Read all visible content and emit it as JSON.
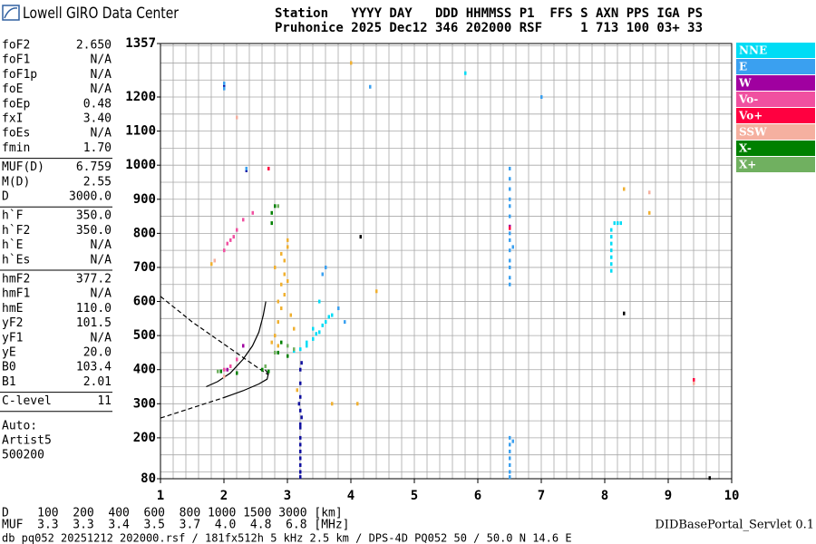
{
  "header": {
    "title": "Lowell GIRO Data Center",
    "line1": "Station   YYYY DAY   DDD HHMMSS P1  FFS S AXN PPS IGA PS",
    "line2": "Pruhonice 2025 Dec12 346 202000 RSF     1 713 100 03+ 33"
  },
  "parameters": [
    [
      {
        "name": "foF2",
        "value": "2.650"
      },
      {
        "name": "foF1",
        "value": "N/A"
      },
      {
        "name": "foF1p",
        "value": "N/A"
      },
      {
        "name": "foE",
        "value": "N/A"
      },
      {
        "name": "foEp",
        "value": "0.48"
      },
      {
        "name": "fxI",
        "value": "3.40"
      },
      {
        "name": "foEs",
        "value": "N/A"
      },
      {
        "name": "fmin",
        "value": "1.70"
      }
    ],
    [
      {
        "name": "MUF(D)",
        "value": "6.759"
      },
      {
        "name": "M(D)",
        "value": "2.55"
      },
      {
        "name": "D",
        "value": "3000.0"
      }
    ],
    [
      {
        "name": "h`F",
        "value": "350.0"
      },
      {
        "name": "h`F2",
        "value": "350.0"
      },
      {
        "name": "h`E",
        "value": "N/A"
      },
      {
        "name": "h`Es",
        "value": "N/A"
      }
    ],
    [
      {
        "name": "hmF2",
        "value": "377.2"
      },
      {
        "name": "hmF1",
        "value": "N/A"
      },
      {
        "name": "hmE",
        "value": "110.0"
      },
      {
        "name": "yF2",
        "value": "101.5"
      },
      {
        "name": "yF1",
        "value": "N/A"
      },
      {
        "name": "yE",
        "value": "20.0"
      },
      {
        "name": "B0",
        "value": "103.4"
      },
      {
        "name": "B1",
        "value": "2.01"
      }
    ],
    [
      {
        "name": "C-level",
        "value": "11"
      }
    ]
  ],
  "auto": [
    "Auto:",
    "Artist5",
    "500200"
  ],
  "footer": {
    "d_row": "D    100  200  400  600  800 1000 1500 3000 [km]",
    "muf_row": "MUF  3.3  3.3  3.4  3.5  3.7  4.0  4.8  6.8 [MHz]",
    "source": "db pq052 20251212 202000.rsf / 181fx512h 5 kHz 2.5 km / DPS-4D PQ052 50 / 50.0 N 14.6 E",
    "servlet": "DIDBasePortal_Servlet 0.1"
  },
  "chart_data": {
    "type": "scatter",
    "xlim": [
      1,
      10
    ],
    "xticks": [
      1,
      2,
      3,
      4,
      5,
      6,
      7,
      8,
      9,
      10
    ],
    "ylim": [
      80,
      1357
    ],
    "yticks": [
      80,
      200,
      300,
      400,
      500,
      600,
      700,
      800,
      900,
      1000,
      1100,
      1200,
      1357
    ],
    "grid": true,
    "x_grid_step": 0.2,
    "y_grid_step": 50,
    "legend": "right",
    "series": [
      {
        "name": "NNE",
        "color": "#00dcf5",
        "x": [
          8.1,
          8.1,
          8.1,
          8.1,
          8.1,
          8.1,
          8.1,
          8.15,
          8.2,
          8.25,
          3.3,
          3.4,
          3.5,
          3.6,
          3.7,
          3.2,
          3.1,
          3.4,
          3.5,
          3.3,
          5.8,
          3.45,
          3.55,
          3.65
        ],
        "y": [
          690,
          710,
          730,
          750,
          770,
          790,
          810,
          830,
          830,
          830,
          470,
          490,
          510,
          540,
          560,
          460,
          455,
          520,
          600,
          480,
          1270,
          505,
          530,
          555
        ]
      },
      {
        "name": "E",
        "color": "#3aa0f0",
        "x": [
          6.5,
          6.5,
          6.5,
          6.5,
          6.5,
          6.5,
          6.5,
          6.5,
          6.5,
          6.5,
          6.5,
          6.5,
          6.5,
          6.5,
          6.5,
          6.5,
          6.5,
          6.5,
          6.5,
          6.5,
          2.0,
          2.0,
          3.6,
          3.55,
          3.8,
          3.9,
          4.3,
          2.35,
          7.0,
          6.55,
          6.55
        ],
        "y": [
          650,
          670,
          700,
          720,
          750,
          780,
          800,
          850,
          880,
          900,
          930,
          960,
          990,
          200,
          180,
          160,
          140,
          120,
          100,
          85,
          1240,
          1225,
          700,
          680,
          580,
          540,
          1230,
          990,
          1200,
          760,
          190
        ]
      },
      {
        "name": "W",
        "color": "#a000a0",
        "x": [
          6.5,
          2.3,
          2.05
        ],
        "y": [
          820,
          470,
          400
        ]
      },
      {
        "name": "Vo-",
        "color": "#f050a0",
        "x": [
          2.0,
          2.05,
          2.1,
          2.15,
          2.2,
          2.3,
          2.45,
          2.0,
          2.1,
          2.2
        ],
        "y": [
          750,
          770,
          780,
          790,
          810,
          840,
          860,
          400,
          410,
          430
        ]
      },
      {
        "name": "Vo+",
        "color": "#ff0040",
        "x": [
          9.4,
          2.7,
          6.5
        ],
        "y": [
          370,
          990,
          815
        ]
      },
      {
        "name": "SSW",
        "color": "#f5b0a0",
        "x": [
          1.85,
          2.2,
          9.4,
          2.0,
          8.7
        ],
        "y": [
          720,
          1140,
          360,
          380,
          920
        ]
      },
      {
        "name": "X-",
        "color": "#008000",
        "x": [
          2.75,
          2.75,
          2.8,
          2.9,
          3.0,
          2.6,
          2.7,
          2.2,
          2.85,
          1.95
        ],
        "y": [
          830,
          860,
          880,
          480,
          440,
          400,
          395,
          390,
          450,
          395
        ]
      },
      {
        "name": "X+",
        "color": "#70b060",
        "x": [
          2.8,
          3.0,
          1.9,
          2.85,
          3.1,
          2.65
        ],
        "y": [
          450,
          470,
          395,
          880,
          460,
          410
        ]
      }
    ],
    "traces": [
      {
        "color": "#f0b030",
        "x": [
          2.8,
          2.85,
          2.9,
          2.95,
          3.0,
          2.8,
          2.9,
          3.0,
          3.1,
          2.75,
          2.85,
          2.95,
          3.05,
          2.9,
          2.95,
          3.0,
          4.0,
          3.15,
          4.4,
          2.85,
          1.8,
          8.3,
          8.7,
          3.7,
          4.1
        ],
        "y": [
          500,
          540,
          580,
          620,
          660,
          700,
          740,
          780,
          520,
          480,
          600,
          680,
          560,
          650,
          720,
          760,
          1300,
          340,
          630,
          470,
          710,
          930,
          860,
          300,
          300
        ]
      },
      {
        "color": "#1010a0",
        "x": [
          3.2,
          3.2,
          3.2,
          3.2,
          3.2,
          3.2,
          3.2,
          3.2,
          3.2,
          3.2,
          3.2,
          3.2,
          3.22,
          3.18,
          3.22,
          3.2,
          2.35,
          2.0
        ],
        "y": [
          85,
          100,
          120,
          140,
          160,
          180,
          200,
          240,
          280,
          320,
          360,
          400,
          420,
          300,
          260,
          230,
          985,
          1230
        ]
      },
      {
        "color": "#000000",
        "x": [
          9.65,
          8.3,
          4.15
        ],
        "y": [
          82,
          565,
          790
        ]
      }
    ],
    "lines": [
      {
        "style": "solid",
        "color": "#000000",
        "x": [
          1.72,
          1.9,
          2.1,
          2.3,
          2.45,
          2.55,
          2.62,
          2.66
        ],
        "y": [
          350,
          365,
          390,
          430,
          470,
          510,
          560,
          600
        ]
      },
      {
        "style": "solid",
        "color": "#000000",
        "x": [
          2.0,
          2.3,
          2.55,
          2.68,
          2.7,
          2.65
        ],
        "y": [
          318,
          338,
          358,
          372,
          388,
          400
        ]
      },
      {
        "style": "dashed",
        "color": "#000000",
        "x": [
          1.0,
          2.0
        ],
        "y": [
          258,
          318
        ]
      },
      {
        "style": "dashed",
        "color": "#000000",
        "x": [
          1.0,
          1.5,
          2.0,
          2.5,
          2.7
        ],
        "y": [
          615,
          540,
          475,
          410,
          385
        ]
      }
    ]
  }
}
